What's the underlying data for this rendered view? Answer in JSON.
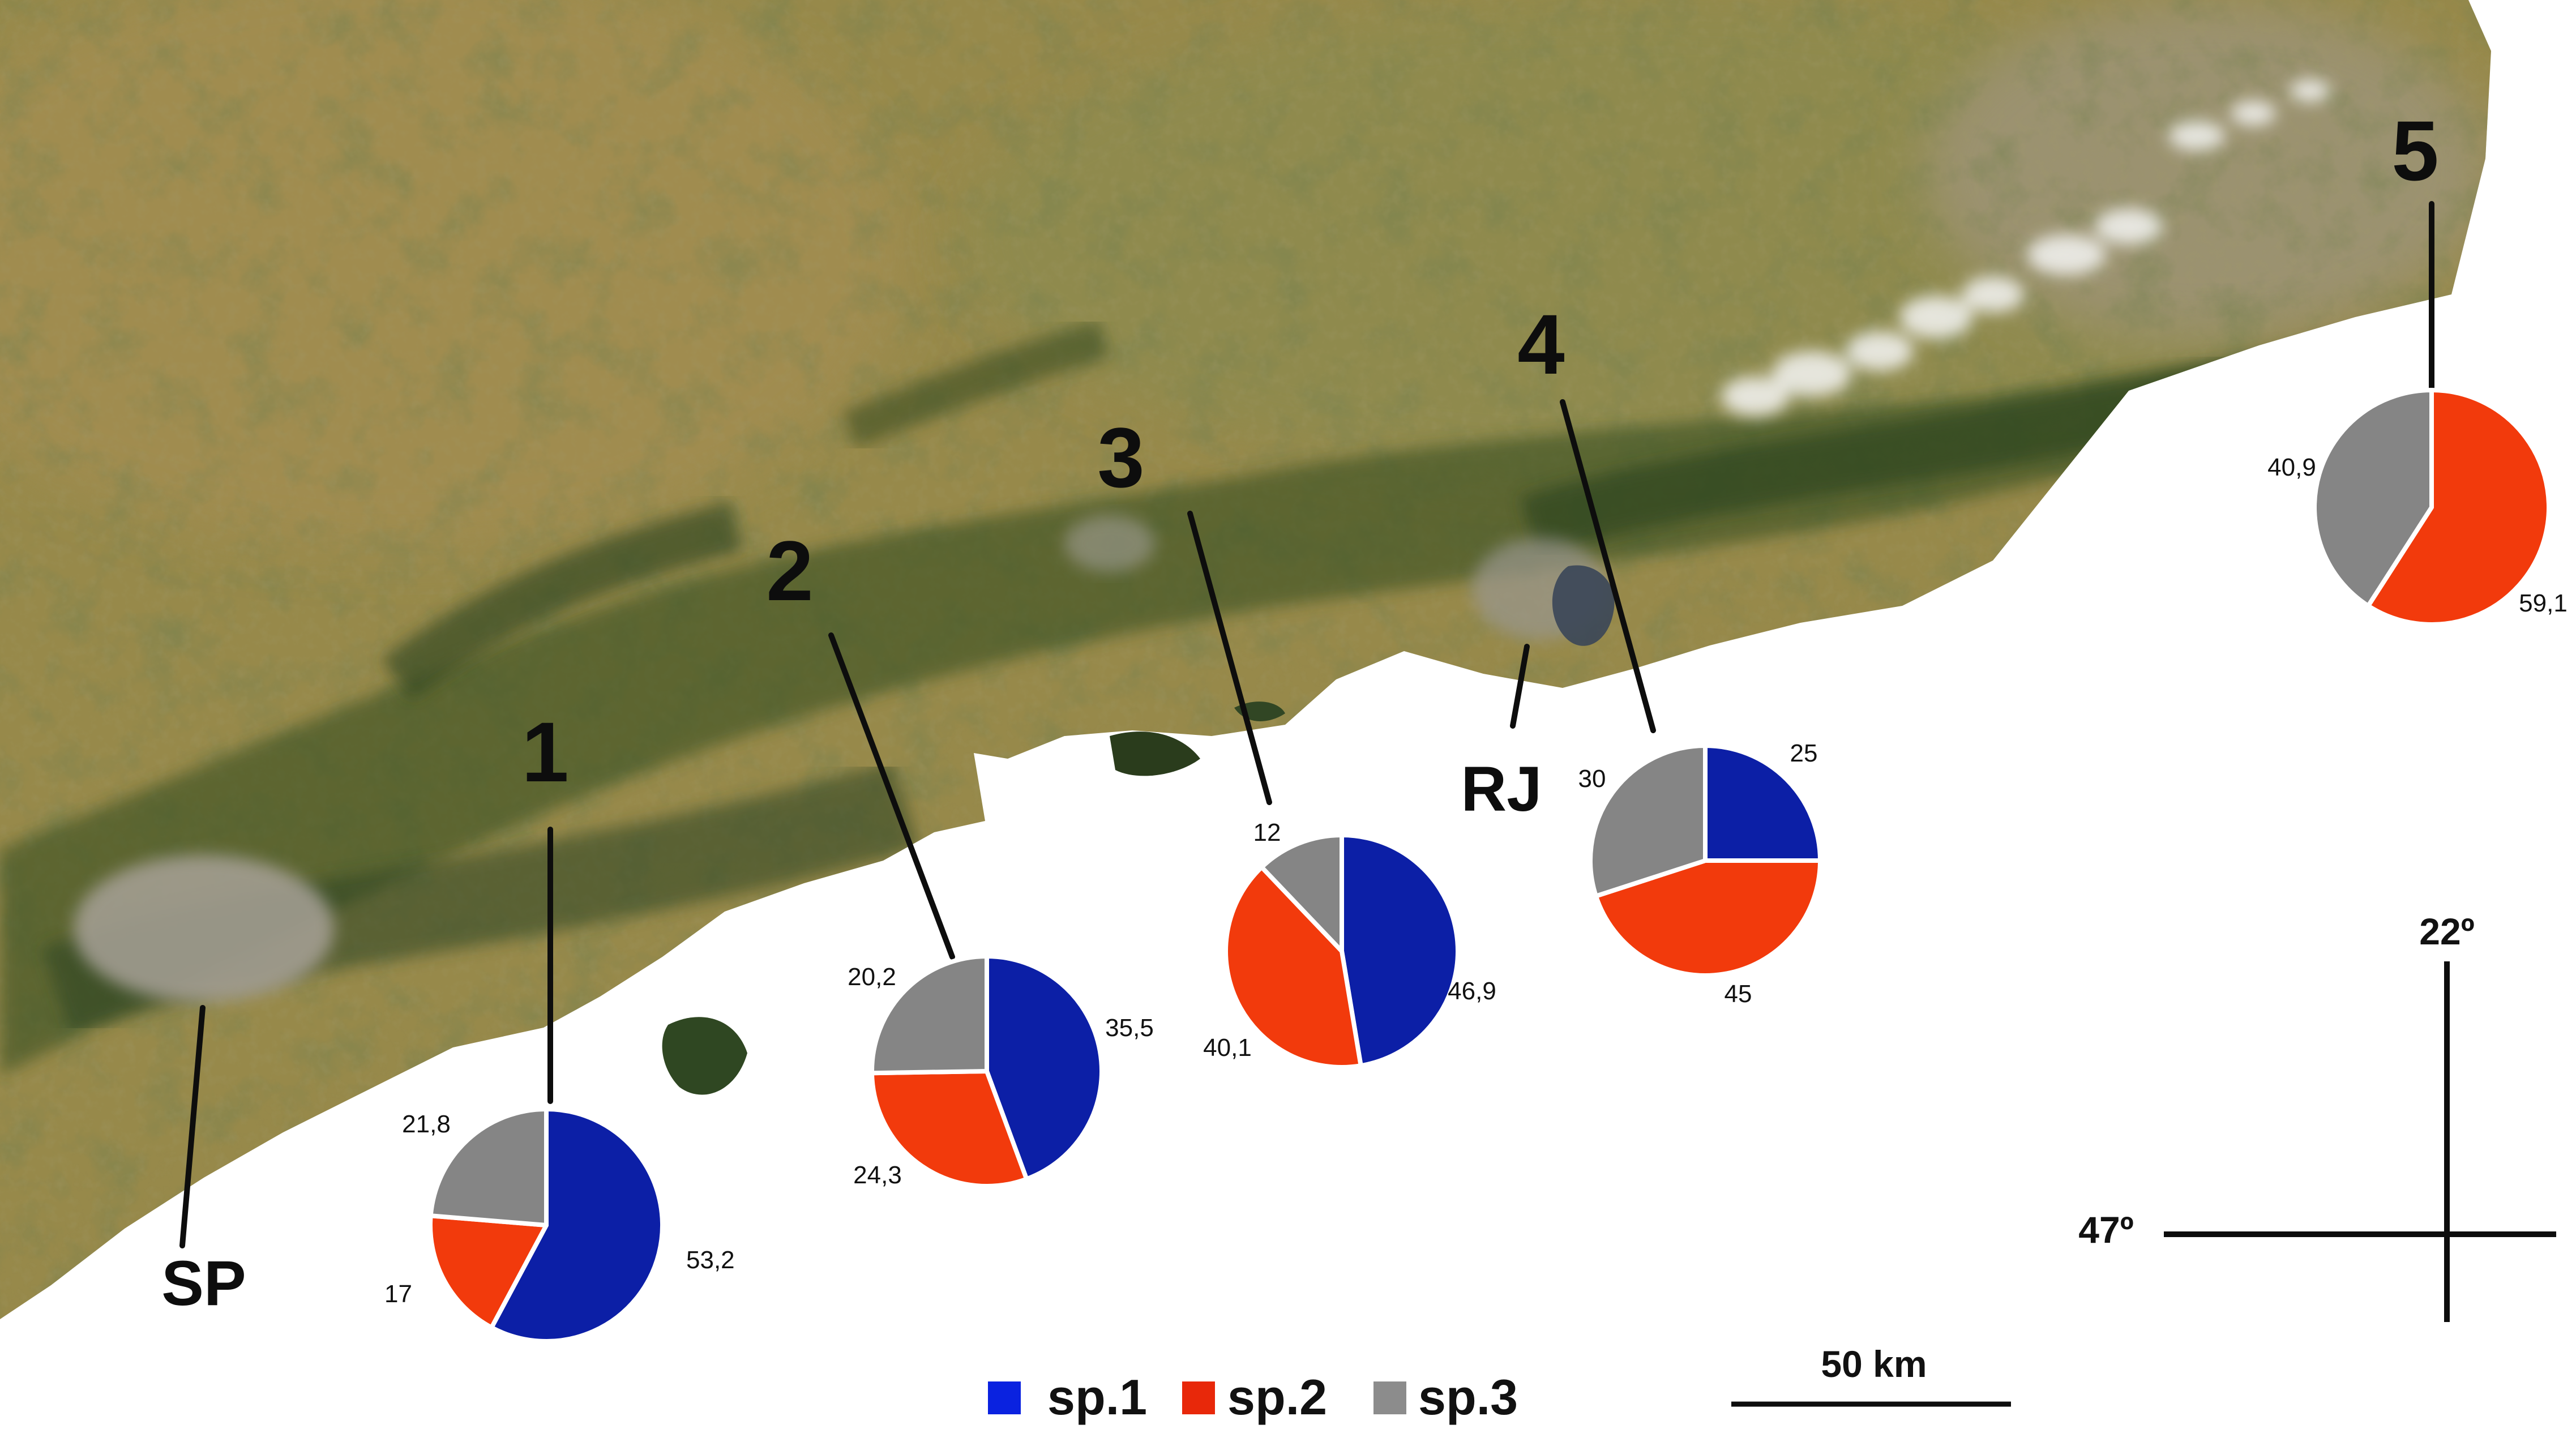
{
  "map": {
    "cities": [
      {
        "id": "sp",
        "label": "SP"
      },
      {
        "id": "rj",
        "label": "RJ"
      }
    ],
    "sites": [
      {
        "label": "1",
        "slices": [
          {
            "series": "sp.1",
            "value": 53.2,
            "text": "53,2"
          },
          {
            "series": "sp.2",
            "value": 17,
            "text": "17"
          },
          {
            "series": "sp.3",
            "value": 21.8,
            "text": "21,8"
          }
        ]
      },
      {
        "label": "2",
        "slices": [
          {
            "series": "sp.1",
            "value": 35.5,
            "text": "35,5"
          },
          {
            "series": "sp.2",
            "value": 24.3,
            "text": "24,3"
          },
          {
            "series": "sp.3",
            "value": 20.2,
            "text": "20,2"
          }
        ]
      },
      {
        "label": "3",
        "slices": [
          {
            "series": "sp.1",
            "value": 46.9,
            "text": "46,9"
          },
          {
            "series": "sp.2",
            "value": 40.1,
            "text": "40,1"
          },
          {
            "series": "sp.3",
            "value": 12,
            "text": "12"
          }
        ]
      },
      {
        "label": "4",
        "slices": [
          {
            "series": "sp.1",
            "value": 25,
            "text": "25"
          },
          {
            "series": "sp.2",
            "value": 45,
            "text": "45"
          },
          {
            "series": "sp.3",
            "value": 30,
            "text": "30"
          }
        ]
      },
      {
        "label": "5",
        "slices": [
          {
            "series": "sp.2",
            "value": 59.1,
            "text": "59,1"
          },
          {
            "series": "sp.3",
            "value": 40.9,
            "text": "40,9"
          }
        ]
      }
    ],
    "legend": [
      {
        "label": "sp.1",
        "color": "#0a22e0"
      },
      {
        "label": "sp.2",
        "color": "#e8280a"
      },
      {
        "label": "sp.3",
        "color": "#8c8c8c"
      }
    ],
    "series_colors": {
      "sp.1": "#0c1fa6",
      "sp.2": "#f23a0c",
      "sp.3": "#858585"
    },
    "coordinates": {
      "latitude": "22º",
      "longitude": "47º"
    },
    "scale_bar": {
      "label": "50 km"
    }
  }
}
